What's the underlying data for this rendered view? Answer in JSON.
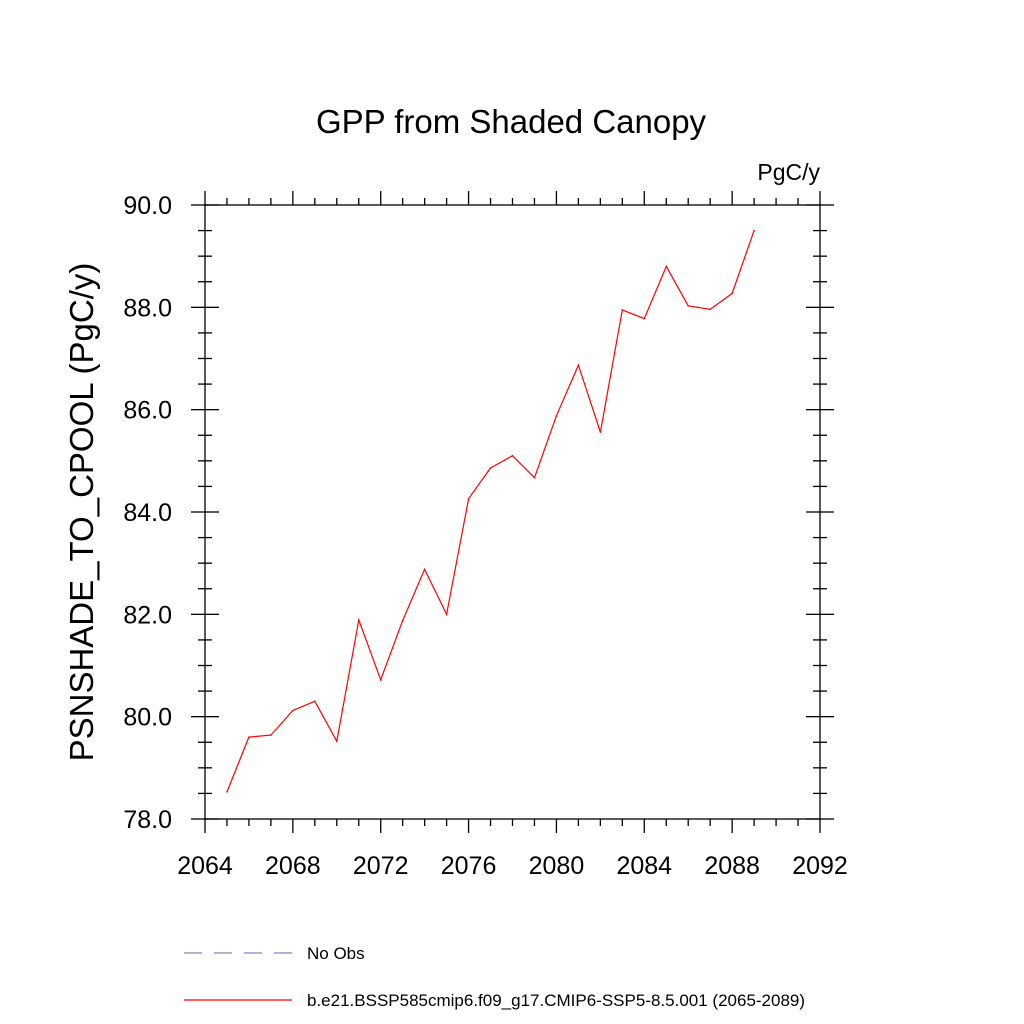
{
  "chart_data": {
    "type": "line",
    "title": "GPP from Shaded Canopy",
    "units": "PgC/y",
    "ylabel": "PSNSHADE_TO_CPOOL  (PgC/y)",
    "xlabel": "",
    "xlim": [
      2064,
      2092
    ],
    "ylim": [
      78.0,
      90.0
    ],
    "x_ticks": [
      2064,
      2068,
      2072,
      2076,
      2080,
      2084,
      2088,
      2092
    ],
    "x_tick_labels": [
      "2064",
      "2068",
      "2072",
      "2076",
      "2080",
      "2084",
      "2088",
      "2092"
    ],
    "y_ticks": [
      78.0,
      80.0,
      82.0,
      84.0,
      86.0,
      88.0,
      90.0
    ],
    "y_tick_labels": [
      "78.0",
      "80.0",
      "82.0",
      "84.0",
      "86.0",
      "88.0",
      "90.0"
    ],
    "grid": false,
    "legend_position": "bottom",
    "series": [
      {
        "name": "b.e21.BSSP585cmip6.f09_g17.CMIP6-SSP5-8.5.001 (2065-2089)",
        "color": "#ff0000",
        "style": "solid",
        "x": [
          2065,
          2066,
          2067,
          2068,
          2069,
          2070,
          2071,
          2072,
          2073,
          2074,
          2075,
          2076,
          2077,
          2078,
          2079,
          2080,
          2081,
          2082,
          2083,
          2084,
          2085,
          2086,
          2087,
          2088,
          2089
        ],
        "y": [
          78.53,
          79.6,
          79.64,
          80.12,
          80.3,
          79.52,
          81.89,
          80.72,
          81.88,
          82.88,
          82.0,
          84.26,
          84.86,
          85.1,
          84.67,
          85.88,
          86.87,
          85.56,
          87.95,
          87.78,
          88.8,
          88.03,
          87.96,
          88.27,
          89.5
        ]
      }
    ],
    "legend": [
      {
        "label": "No Obs",
        "color": "#8080c0",
        "style": "dashed"
      },
      {
        "label": "b.e21.BSSP585cmip6.f09_g17.CMIP6-SSP5-8.5.001 (2065-2089)",
        "color": "#ff0000",
        "style": "solid"
      }
    ]
  }
}
